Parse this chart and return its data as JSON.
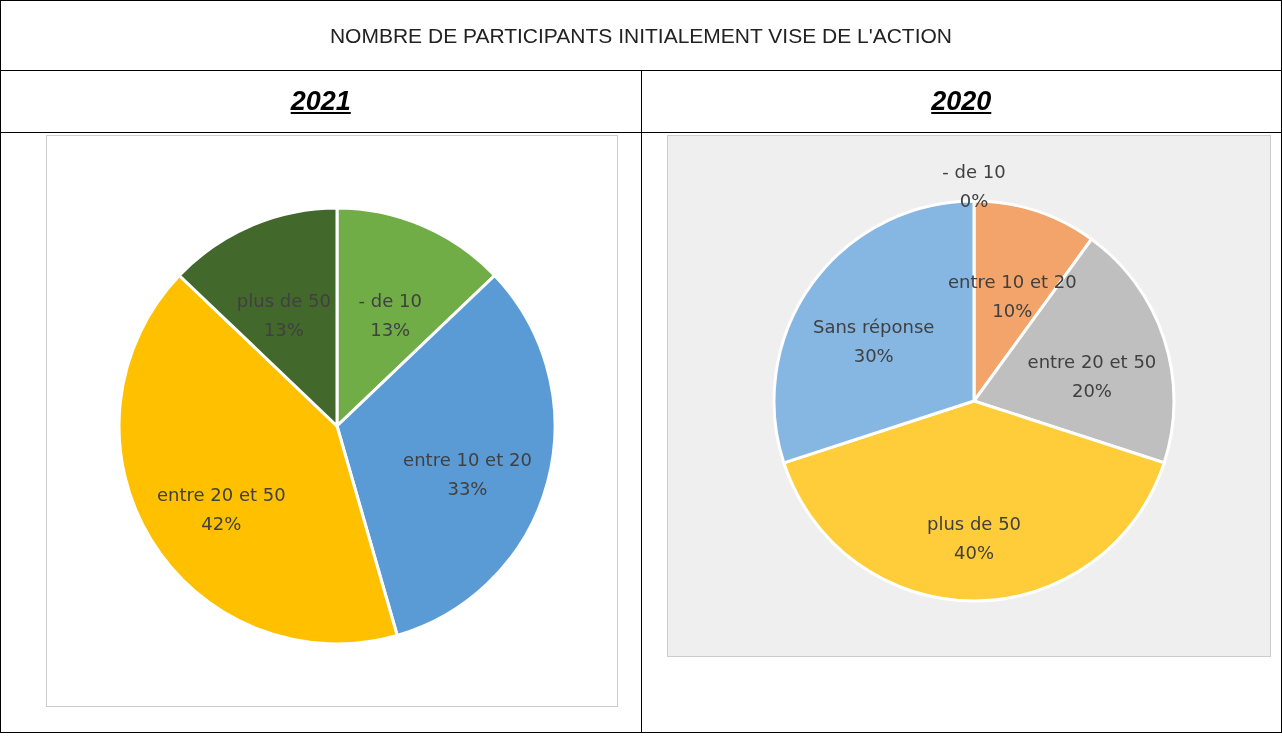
{
  "chart_data": [
    {
      "type": "pie",
      "title": "2021",
      "annotations": [
        "NOMBRE DE PARTICIPANTS INITIALEMENT VISE DE L'ACTION"
      ],
      "categories": [
        "- de 10",
        "entre 10 et 20",
        "entre 20 et 50",
        "plus de 50"
      ],
      "values": [
        13,
        33,
        42,
        13
      ],
      "colors": [
        "#70ad47",
        "#5b9bd5",
        "#ffc000",
        "#43682b"
      ],
      "value_labels": [
        "13%",
        "33%",
        "42%",
        "13%"
      ]
    },
    {
      "type": "pie",
      "title": "2020",
      "categories": [
        "- de 10",
        "entre 10 et 20",
        "entre 20 et 50",
        "plus de 50",
        "Sans réponse"
      ],
      "values": [
        0,
        10,
        20,
        40,
        30
      ],
      "colors": [
        "#ed7d31",
        "#f2a46a",
        "#bfbfbf",
        "#ffcd3a",
        "#86b6e2"
      ],
      "value_labels": [
        "0%",
        "10%",
        "20%",
        "40%",
        "30%"
      ]
    }
  ]
}
